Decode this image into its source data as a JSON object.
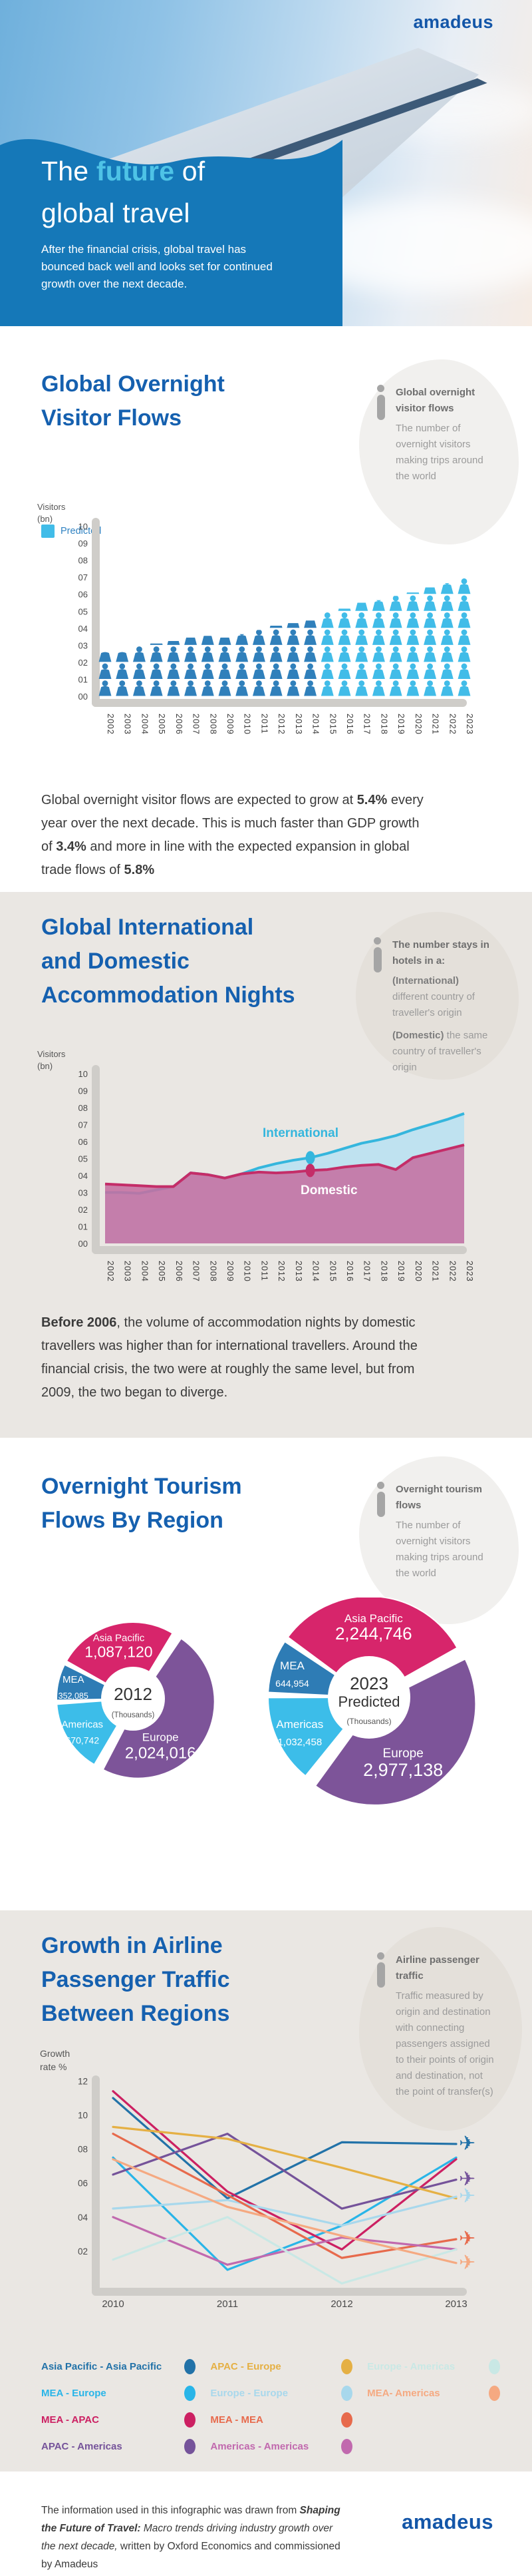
{
  "brand": {
    "logo": "amadeus"
  },
  "header": {
    "title": {
      "pre": "The ",
      "highlight": "future",
      "post": " of",
      "line2": "global travel"
    },
    "subtitle": "After the financial crisis, global travel has bounced back well and looks set for continued growth over the next decade.",
    "panel_color": "#1578b8",
    "highlight_color": "#4ec3e6"
  },
  "s1": {
    "heading_lines": [
      "Global Overnight",
      "Visitor Flows"
    ],
    "info": {
      "title": "Global overnight visitor flows",
      "body": "The number of overnight visitors making trips around the world"
    },
    "legend": "Predicted",
    "paragraph": [
      {
        "text": "Global overnight visitor flows are expected to grow at "
      },
      {
        "text": "5.4%",
        "b": true
      },
      {
        "text": " every year over the next decade. This is much faster than GDP growth of "
      },
      {
        "text": "3.4%",
        "b": true
      },
      {
        "text": " and more in line with the expected expansion in global trade flows of "
      },
      {
        "text": "5.8%",
        "b": true
      }
    ]
  },
  "s2": {
    "heading_lines": [
      "Global International",
      "and Domestic",
      "Accommodation Nights"
    ],
    "info": {
      "title": "The number stays in hotels in a:",
      "line_international": [
        {
          "text": "(International)",
          "b": true
        },
        {
          "text": " different country of traveller's origin"
        }
      ],
      "line_domestic": [
        {
          "text": "(Domestic)",
          "b": true
        },
        {
          "text": " the same country of traveller's origin"
        }
      ]
    },
    "paragraph": [
      {
        "text": "Before 2006",
        "b": true
      },
      {
        "text": ", the volume of accommodation nights by domestic travellers was higher than for international travellers. Around the financial crisis, the two were at roughly the same level, but from 2009, the two began to diverge."
      }
    ]
  },
  "s3": {
    "heading_lines": [
      "Overnight Tourism",
      "Flows By Region"
    ],
    "info": {
      "title": "Overnight tourism flows",
      "body": "The number of overnight visitors making trips around the world"
    }
  },
  "s4": {
    "heading_lines": [
      "Growth in Airline",
      "Passenger Traffic",
      "Between Regions"
    ],
    "info": {
      "title": "Airline passenger traffic",
      "body": "Traffic measured by origin and destination with connecting passengers assigned to their points of origin and destination, not the point of transfer(s)"
    }
  },
  "footer": {
    "paragraph": [
      {
        "text": "The information used in this infographic was drawn from "
      },
      {
        "text": "Shaping the Future of Travel:",
        "bi": true
      },
      {
        "text": " Macro trends driving industry growth over the next decade,",
        "i": true
      },
      {
        "text": " written by Oxford Economics and commissioned by Amadeus"
      }
    ],
    "logo": "amadeus"
  },
  "chart_data": [
    {
      "id": "global_overnight_visitor_flows",
      "type": "bar",
      "subtype": "pictograph-people",
      "title": "Global Overnight Visitor Flows",
      "ylabel_lines": [
        "Visitors",
        "(bn)"
      ],
      "ylim": [
        0,
        10
      ],
      "yticks": [
        "10",
        "09",
        "08",
        "07",
        "06",
        "05",
        "04",
        "03",
        "02",
        "01",
        "00"
      ],
      "categories": [
        2002,
        2003,
        2004,
        2005,
        2006,
        2007,
        2008,
        2009,
        2010,
        2011,
        2012,
        2013,
        2014,
        2015,
        2016,
        2017,
        2018,
        2019,
        2020,
        2021,
        2022,
        2023
      ],
      "values": [
        2.6,
        2.6,
        2.95,
        3.1,
        3.25,
        3.45,
        3.55,
        3.45,
        3.65,
        3.9,
        4.15,
        4.3,
        4.45,
        4.95,
        5.15,
        5.5,
        5.65,
        5.9,
        6.1,
        6.4,
        6.65,
        6.95
      ],
      "predicted_from": 2015,
      "colors": {
        "historical": "#3080bb",
        "predicted": "#41bce8"
      },
      "legend": "Predicted"
    },
    {
      "id": "accommodation_nights",
      "type": "area",
      "title": "Global International and Domestic Accommodation Nights",
      "ylabel_lines": [
        "Visitors",
        "(bn)"
      ],
      "ylim": [
        0,
        10
      ],
      "yticks": [
        "10",
        "09",
        "08",
        "07",
        "06",
        "05",
        "04",
        "03",
        "02",
        "01",
        "00"
      ],
      "categories": [
        2002,
        2003,
        2004,
        2005,
        2006,
        2007,
        2008,
        2009,
        2010,
        2011,
        2012,
        2013,
        2014,
        2015,
        2016,
        2017,
        2018,
        2019,
        2020,
        2021,
        2022,
        2023
      ],
      "series": [
        {
          "name": "International",
          "color": "#35b6dd",
          "fill": "#bfe2f0",
          "values": [
            3.0,
            3.0,
            2.95,
            3.15,
            3.35,
            4.15,
            4.05,
            3.85,
            4.1,
            4.45,
            4.7,
            4.9,
            5.05,
            5.3,
            5.6,
            5.9,
            6.1,
            6.35,
            6.7,
            7.0,
            7.3,
            7.65
          ]
        },
        {
          "name": "Domestic",
          "color": "#c42d68",
          "fill": "rgba(197,112,160,0.88)",
          "values": [
            3.5,
            3.45,
            3.4,
            3.35,
            3.35,
            4.15,
            4.05,
            3.85,
            4.1,
            4.2,
            4.15,
            4.2,
            4.3,
            4.35,
            4.5,
            4.6,
            4.65,
            4.35,
            5.05,
            5.3,
            5.55,
            5.8
          ]
        }
      ],
      "marker_year": 2014,
      "label_international": "International",
      "label_domestic": "Domestic"
    },
    {
      "id": "overnight_tourism_flows_by_region",
      "type": "pie",
      "title": "Overnight Tourism Flows By Region",
      "pies": [
        {
          "center_line1": "2012",
          "center_line2": "",
          "units": "(Thousands)",
          "start_angle": -62,
          "radius": 115,
          "hole": 48,
          "cx": 200,
          "cy": 152,
          "slices": [
            {
              "name": "Asia Pacific",
              "value": 1087120,
              "display": "1,087,120",
              "color": "#d7256b",
              "lr": 0.74,
              "name_fs": 15,
              "val_fs": 23
            },
            {
              "name": "Europe",
              "value": 2024016,
              "display": "2,024,016",
              "color": "#7d5499",
              "pulled": true,
              "la": 152,
              "lr": 0.62,
              "name_fs": 17,
              "val_fs": 24
            },
            {
              "name": "Americas",
              "value": 670742,
              "display": "670,742",
              "color": "#3cbde9",
              "lr": 0.78,
              "name_fs": 15,
              "val_fs": 14
            },
            {
              "name": "MEA",
              "value": 352085,
              "display": "352,085",
              "color": "#2e7cb5",
              "lr": 0.8,
              "name_fs": 15,
              "val_fs": 12.5
            }
          ]
        },
        {
          "center_line1": "2023",
          "center_line2": "Predicted",
          "units": "(Thousands)",
          "start_angle": -55,
          "radius": 152,
          "hole": 62,
          "cx": 555,
          "cy": 150,
          "slices": [
            {
              "name": "Asia Pacific",
              "value": 2244746,
              "display": "2,244,746",
              "color": "#d7256b",
              "lr": 0.72,
              "name_fs": 17,
              "val_fs": 26
            },
            {
              "name": "Europe",
              "value": 2977138,
              "display": "2,977,138",
              "color": "#7d5499",
              "pulled": true,
              "la": 153,
              "lr": 0.62,
              "name_fs": 19,
              "val_fs": 27
            },
            {
              "name": "Americas",
              "value": 1032458,
              "display": "1,032,458",
              "color": "#3cbde9",
              "lr": 0.76,
              "name_fs": 17,
              "val_fs": 15
            },
            {
              "name": "MEA",
              "value": 644954,
              "display": "644,954",
              "color": "#2e7cb5",
              "lr": 0.8,
              "name_fs": 17,
              "val_fs": 14
            }
          ]
        }
      ]
    },
    {
      "id": "airline_passenger_traffic_growth",
      "type": "line",
      "title": "Growth in Airline Passenger Traffic Between Regions",
      "ylabel_lines": [
        "Growth",
        "rate %"
      ],
      "ylim": [
        0,
        12
      ],
      "yticks": [
        "12",
        "10",
        "08",
        "06",
        "04",
        "02"
      ],
      "x": [
        2010,
        2011,
        2012,
        2013
      ],
      "series": [
        {
          "name": "Asia Pacific - Asia Pacific",
          "color": "#2272a8",
          "values": [
            11.0,
            5.1,
            8.4,
            8.3
          ],
          "plane": true
        },
        {
          "name": "MEA - Europe",
          "color": "#29b5e8",
          "values": [
            7.5,
            0.9,
            3.5,
            7.5
          ],
          "plane": false
        },
        {
          "name": "MEA - APAC",
          "color": "#cc2062",
          "values": [
            11.4,
            5.5,
            2.1,
            7.4
          ],
          "plane": false
        },
        {
          "name": "APAC - Americas",
          "color": "#75539a",
          "values": [
            6.5,
            8.9,
            4.5,
            6.2
          ],
          "plane": true
        },
        {
          "name": "APAC - Europe",
          "color": "#e5b044",
          "values": [
            9.3,
            8.6,
            6.9,
            5.1
          ],
          "plane": false
        },
        {
          "name": "Europe - Europe",
          "color": "#a8d8ec",
          "values": [
            4.5,
            5.0,
            3.5,
            5.2
          ],
          "plane": true
        },
        {
          "name": "MEA - MEA",
          "color": "#e76a4c",
          "values": [
            8.9,
            5.3,
            1.6,
            2.7
          ],
          "plane": true
        },
        {
          "name": "Americas - Americas",
          "color": "#c169ae",
          "values": [
            4.0,
            1.2,
            2.8,
            2.1
          ],
          "plane": false
        },
        {
          "name": "Europe - Americas",
          "color": "#c9e8e5",
          "values": [
            1.5,
            4.0,
            0.1,
            2.1
          ],
          "plane": false
        },
        {
          "name": "MEA- Americas",
          "color": "#f5a981",
          "values": [
            7.4,
            4.6,
            2.9,
            1.3
          ],
          "plane": true
        }
      ],
      "legend_columns": [
        [
          0,
          1,
          2,
          3
        ],
        [
          4,
          5,
          6,
          7
        ],
        [
          8,
          9
        ]
      ]
    }
  ]
}
